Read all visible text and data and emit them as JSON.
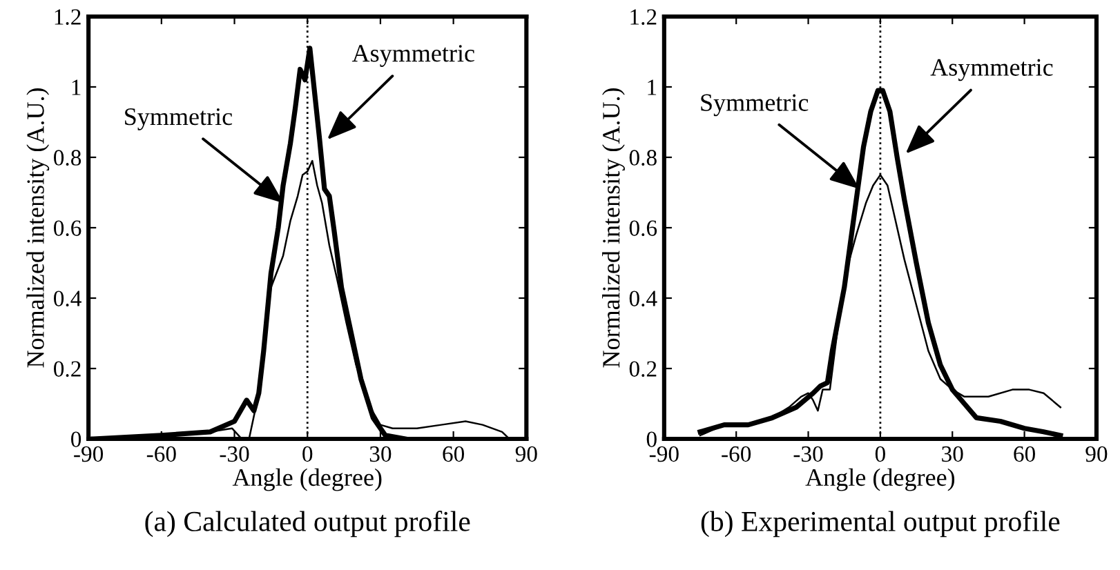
{
  "chart_data": [
    {
      "type": "line",
      "title": "(a) Calculated output profile",
      "xlabel": "Angle (degree)",
      "ylabel": "Normalized intensity (A.U.)",
      "xlim": [
        -90,
        90
      ],
      "xticks": [
        -90,
        -60,
        -30,
        0,
        30,
        60,
        90
      ],
      "ylim": [
        0,
        1.2
      ],
      "yticks": [
        0,
        0.2,
        0.4,
        0.6,
        0.8,
        {
          "value": 1.0,
          "label": "1"
        },
        1.2
      ],
      "grid": false,
      "legend": false,
      "ref_lines": [
        {
          "axis": "x",
          "value": 0,
          "line_style": "dotted",
          "color": "#000000"
        }
      ],
      "annotations": [
        {
          "text": "Symmetric",
          "x": -9.8,
          "y": 0.67
        },
        {
          "text": "Asymmetric",
          "x": 8.1,
          "y": 0.85
        }
      ],
      "series": [
        {
          "color": "#000000",
          "x": [
            -88,
            -60,
            -40,
            -30,
            -25,
            -22,
            -20,
            -18,
            -15,
            -12,
            -10,
            -7,
            -5,
            -3,
            -1,
            1,
            3,
            5,
            7,
            9,
            11,
            14,
            18,
            22,
            27,
            32,
            40
          ],
          "values": [
            0,
            0.01,
            0.02,
            0.05,
            0.11,
            0.08,
            0.13,
            0.25,
            0.47,
            0.6,
            0.72,
            0.84,
            0.94,
            1.05,
            1.02,
            1.11,
            0.98,
            0.85,
            0.71,
            0.69,
            0.59,
            0.43,
            0.3,
            0.17,
            0.06,
            0.01,
            0
          ]
        },
        {
          "color": "#000000",
          "x": [
            -88,
            -60,
            -40,
            -31,
            -27,
            -24,
            -20,
            -15,
            -10,
            -7,
            -4,
            -2,
            0,
            2,
            4,
            6,
            9,
            12,
            16,
            20,
            25,
            30,
            35,
            45,
            55,
            65,
            72,
            80,
            83
          ],
          "values": [
            0,
            0.01,
            0.02,
            0.03,
            0,
            0,
            0.13,
            0.43,
            0.52,
            0.62,
            0.69,
            0.75,
            0.76,
            0.79,
            0.72,
            0.67,
            0.55,
            0.46,
            0.33,
            0.21,
            0.1,
            0.04,
            0.03,
            0.03,
            0.04,
            0.05,
            0.04,
            0.02,
            0
          ]
        }
      ]
    },
    {
      "type": "line",
      "title": "(b) Experimental output profile",
      "xlabel": "Angle (degree)",
      "ylabel": "Normalized intensity (A.U.)",
      "xlim": [
        -90,
        90
      ],
      "xticks": [
        -90,
        -60,
        -30,
        0,
        30,
        60,
        90
      ],
      "ylim": [
        0,
        1.2
      ],
      "yticks": [
        0,
        0.2,
        0.4,
        0.6,
        0.8,
        {
          "value": 1.0,
          "label": "1"
        },
        1.2
      ],
      "grid": false,
      "legend": false,
      "ref_lines": [
        {
          "axis": "x",
          "value": 0,
          "line_style": "dotted",
          "color": "#000000"
        }
      ],
      "annotations": [
        {
          "text": "Symmetric",
          "x": -8.6,
          "y": 0.71
        },
        {
          "text": "Asymmetric",
          "x": 10.5,
          "y": 0.81
        }
      ],
      "series": [
        {
          "color": "#000000",
          "x": [
            -75,
            -65,
            -55,
            -45,
            -35,
            -28,
            -25,
            -22,
            -20,
            -15,
            -10,
            -7,
            -4,
            -1,
            1,
            4,
            7,
            10,
            15,
            20,
            25,
            30,
            35,
            40,
            50,
            60,
            68,
            75
          ],
          "values": [
            0.02,
            0.04,
            0.04,
            0.06,
            0.09,
            0.13,
            0.15,
            0.16,
            0.25,
            0.43,
            0.68,
            0.83,
            0.93,
            0.99,
            0.99,
            0.93,
            0.8,
            0.68,
            0.5,
            0.33,
            0.21,
            0.14,
            0.1,
            0.06,
            0.05,
            0.03,
            0.02,
            0.01
          ]
        },
        {
          "color": "#000000",
          "x": [
            -75,
            -65,
            -55,
            -45,
            -38,
            -33,
            -30,
            -28,
            -26,
            -24,
            -21,
            -18,
            -14,
            -10,
            -6,
            -3,
            0,
            3,
            6,
            10,
            15,
            20,
            25,
            30,
            35,
            45,
            55,
            62,
            68,
            75
          ],
          "values": [
            0.01,
            0.04,
            0.04,
            0.06,
            0.09,
            0.12,
            0.13,
            0.11,
            0.08,
            0.14,
            0.14,
            0.3,
            0.48,
            0.58,
            0.67,
            0.72,
            0.75,
            0.72,
            0.63,
            0.51,
            0.38,
            0.25,
            0.17,
            0.14,
            0.12,
            0.12,
            0.14,
            0.14,
            0.13,
            0.09
          ]
        }
      ]
    }
  ]
}
